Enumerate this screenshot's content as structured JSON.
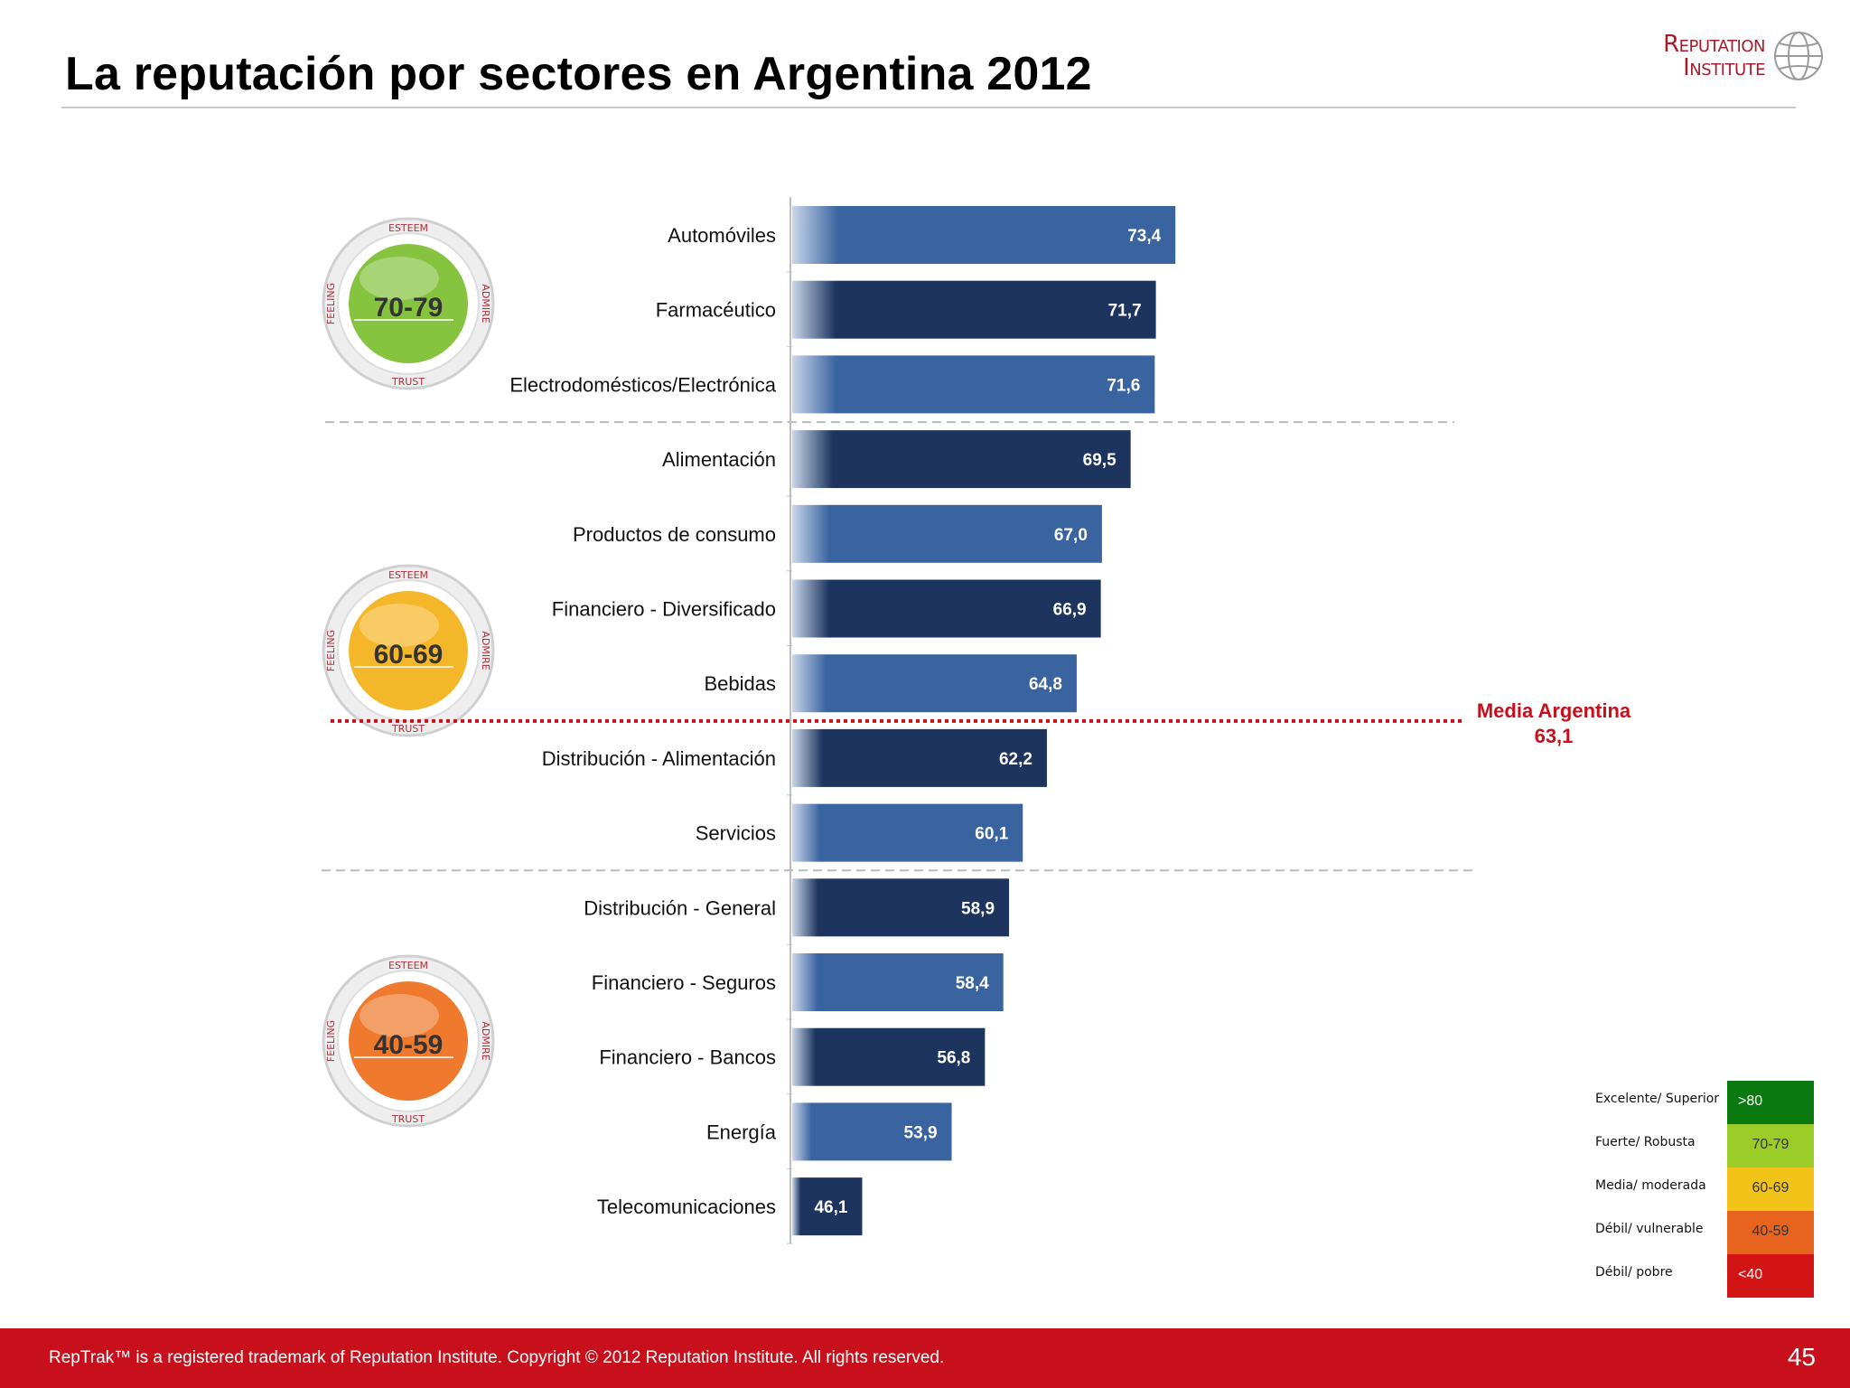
{
  "page": {
    "title": "La reputación por sectores en Argentina 2012",
    "footer": "RepTrak™ is a registered trademark of Reputation Institute. Copyright © 2012 Reputation Institute. All rights reserved.",
    "page_number": "45"
  },
  "logo": {
    "line1": "Reputation",
    "line2": "Institute"
  },
  "chart_data": {
    "type": "bar",
    "orientation": "horizontal",
    "categories": [
      "Automóviles",
      "Farmacéutico",
      "Electrodomésticos/Electrónica",
      "Alimentación",
      "Productos de consumo",
      "Financiero - Diversificado",
      "Bebidas",
      "Distribución - Alimentación",
      "Servicios",
      "Distribución - General",
      "Financiero - Seguros",
      "Financiero - Bancos",
      "Energía",
      "Telecomunicaciones"
    ],
    "values": [
      73.4,
      71.7,
      71.6,
      69.5,
      67.0,
      66.9,
      64.8,
      62.2,
      60.1,
      58.9,
      58.4,
      56.8,
      53.9,
      46.1
    ],
    "value_labels": [
      "73,4",
      "71,7",
      "71,6",
      "69,5",
      "67,0",
      "66,9",
      "64,8",
      "62,2",
      "60,1",
      "58,9",
      "58,4",
      "56,8",
      "53,9",
      "46,1"
    ],
    "reference_line": {
      "value": 63.1,
      "label": "Media Argentina",
      "value_label": "63,1",
      "color": "#c8101c"
    },
    "bands": [
      {
        "label": "70-79",
        "color": "#86c440"
      },
      {
        "label": "60-69",
        "color": "#f5b72a"
      },
      {
        "label": "40-59",
        "color": "#ef7a2e"
      }
    ],
    "band_ring_words": [
      "ESTEEM",
      "ADMIRE",
      "TRUST",
      "FEELING"
    ],
    "colors": {
      "bar_light": "#3a64a0",
      "bar_dark": "#1c345e"
    }
  },
  "legend": [
    {
      "label": "Excelente/ Superior",
      "range": ">80",
      "color": "#0a7a10"
    },
    {
      "label": "Fuerte/ Robusta",
      "range": "70-79",
      "color": "#9ccc28"
    },
    {
      "label": "Media/ moderada",
      "range": "60-69",
      "color": "#f2c41a"
    },
    {
      "label": "Débil/ vulnerable",
      "range": "40-59",
      "color": "#e8641e"
    },
    {
      "label": "Débil/ pobre",
      "range": "<40",
      "color": "#d21414"
    }
  ]
}
